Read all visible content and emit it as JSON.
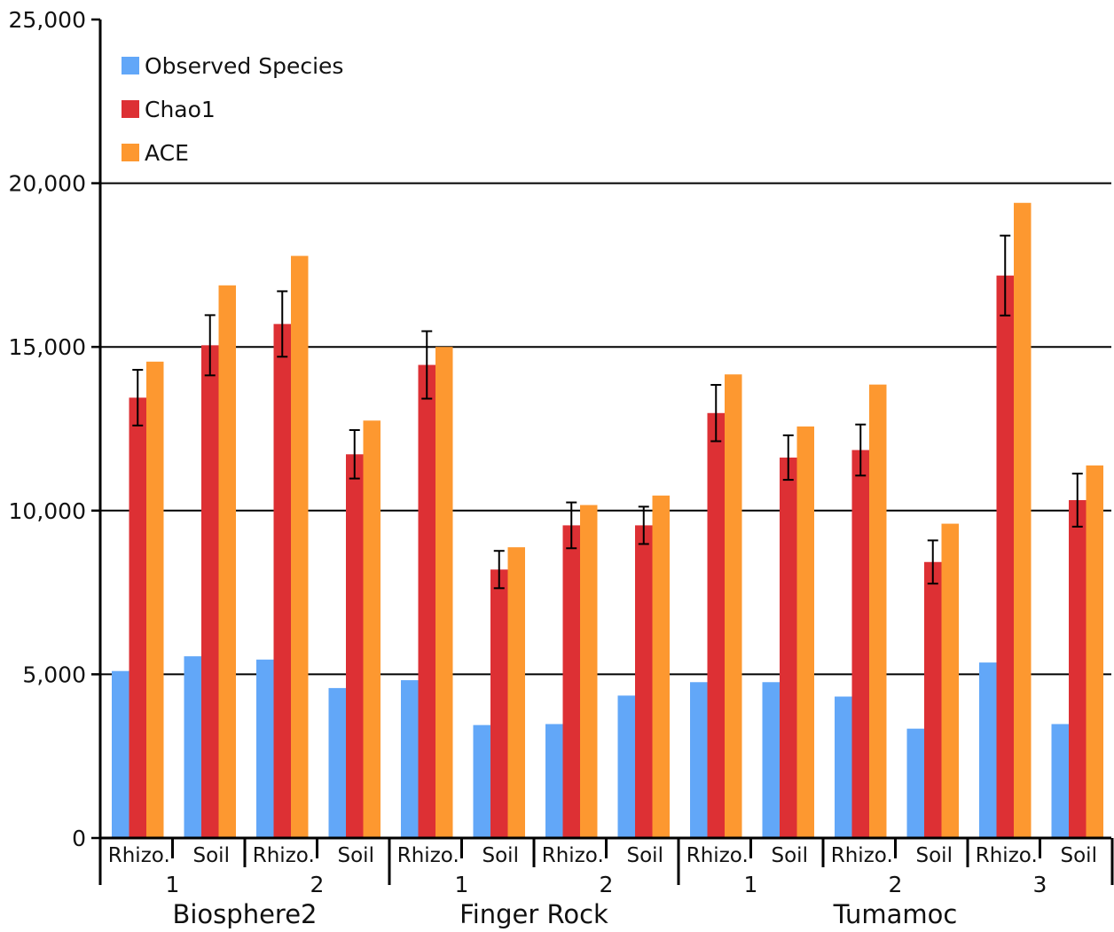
{
  "chart_data": {
    "type": "bar",
    "title": "",
    "xlabel": "",
    "ylabel": "",
    "ylim": [
      0,
      25000
    ],
    "yticks": [
      0,
      5000,
      10000,
      15000,
      20000,
      25000
    ],
    "ytick_labels": [
      "0",
      "5,000",
      "10,000",
      "15,000",
      "20,000",
      "25,000"
    ],
    "grid": "horizontal",
    "legend_position": "top-left",
    "categories": [
      "Rhizo.",
      "Soil",
      "Rhizo.",
      "Soil",
      "Rhizo.",
      "Soil",
      "Rhizo.",
      "Soil",
      "Rhizo.",
      "Soil",
      "Rhizo.",
      "Soil",
      "Rhizo.",
      "Soil"
    ],
    "subgroups": [
      {
        "label": "1",
        "start": 0,
        "count": 2
      },
      {
        "label": "2",
        "start": 2,
        "count": 2
      },
      {
        "label": "1",
        "start": 4,
        "count": 2
      },
      {
        "label": "2",
        "start": 6,
        "count": 2
      },
      {
        "label": "1",
        "start": 8,
        "count": 2
      },
      {
        "label": "2",
        "start": 10,
        "count": 2
      },
      {
        "label": "3",
        "start": 12,
        "count": 2
      }
    ],
    "groups": [
      {
        "label": "Biosphere2",
        "start": 0,
        "count": 4
      },
      {
        "label": "Finger Rock",
        "start": 4,
        "count": 4
      },
      {
        "label": "Tumamoc",
        "start": 8,
        "count": 6
      }
    ],
    "series": [
      {
        "name": "Observed Species",
        "color": "#62a7f8",
        "values": [
          5100,
          5550,
          5450,
          4580,
          4820,
          3450,
          3480,
          4350,
          4760,
          4760,
          4320,
          3340,
          5360,
          3480
        ]
      },
      {
        "name": "Chao1",
        "color": "#dd3034",
        "values": [
          13450,
          15050,
          15700,
          11720,
          14450,
          8200,
          9550,
          9550,
          12980,
          11620,
          11850,
          8430,
          17180,
          10320
        ],
        "error": [
          850,
          920,
          1000,
          740,
          1030,
          570,
          700,
          570,
          860,
          680,
          780,
          660,
          1220,
          810
        ]
      },
      {
        "name": "ACE",
        "color": "#fd9830",
        "values": [
          14550,
          16880,
          17780,
          12750,
          15000,
          8880,
          10170,
          10460,
          14160,
          12570,
          13850,
          9600,
          19400,
          11380
        ]
      }
    ]
  }
}
